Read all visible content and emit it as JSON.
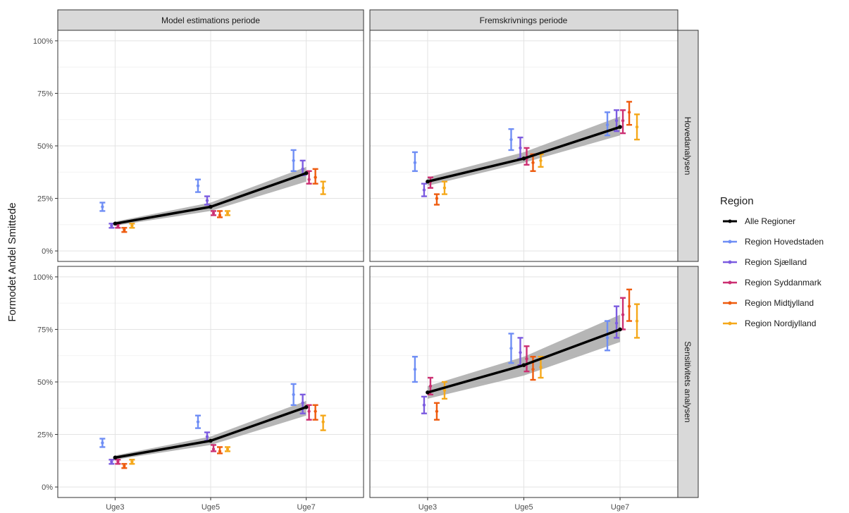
{
  "chart_data": {
    "type": "line",
    "ylabel": "Formodet Andel Smittede",
    "xlabel": "",
    "x_categories": [
      "Uge3",
      "Uge5",
      "Uge7"
    ],
    "y_ticks": [
      "0%",
      "25%",
      "50%",
      "75%",
      "100%"
    ],
    "ylim": [
      0,
      1
    ],
    "grid": true,
    "column_facets": [
      "Model estimations periode",
      "Fremskrivnings periode"
    ],
    "row_facets": [
      "Hovedanalysen",
      "Sensitivitets analysen"
    ],
    "legend": {
      "title": "Region",
      "position": "right",
      "entries": [
        {
          "name": "Alle Regioner",
          "color": "#000000"
        },
        {
          "name": "Region Hovedstaden",
          "color": "#6f8ef5"
        },
        {
          "name": "Region Sjælland",
          "color": "#7c5ce0"
        },
        {
          "name": "Region Syddanmark",
          "color": "#cc2f72"
        },
        {
          "name": "Region Midtjylland",
          "color": "#ee5b0e"
        },
        {
          "name": "Region Nordjylland",
          "color": "#f5a81a"
        }
      ]
    },
    "panels": [
      {
        "col": 0,
        "row": 0,
        "overall": {
          "values": [
            0.13,
            0.21,
            0.37
          ],
          "lower": [
            0.12,
            0.19,
            0.33
          ],
          "upper": [
            0.14,
            0.23,
            0.4
          ]
        },
        "regions": [
          {
            "name": "Region Hovedstaden",
            "est": [
              0.21,
              0.31,
              0.43
            ],
            "lo": [
              0.19,
              0.28,
              0.38
            ],
            "hi": [
              0.23,
              0.34,
              0.48
            ]
          },
          {
            "name": "Region Sjælland",
            "est": [
              0.12,
              0.24,
              0.39
            ],
            "lo": [
              0.11,
              0.22,
              0.36
            ],
            "hi": [
              0.13,
              0.26,
              0.43
            ]
          },
          {
            "name": "Region Syddanmark",
            "est": [
              0.12,
              0.18,
              0.34
            ],
            "lo": [
              0.11,
              0.17,
              0.32
            ],
            "hi": [
              0.13,
              0.19,
              0.38
            ]
          },
          {
            "name": "Region Midtjylland",
            "est": [
              0.1,
              0.17,
              0.35
            ],
            "lo": [
              0.09,
              0.16,
              0.32
            ],
            "hi": [
              0.11,
              0.19,
              0.39
            ]
          },
          {
            "name": "Region Nordjylland",
            "est": [
              0.12,
              0.18,
              0.3
            ],
            "lo": [
              0.11,
              0.17,
              0.27
            ],
            "hi": [
              0.13,
              0.19,
              0.33
            ]
          }
        ]
      },
      {
        "col": 1,
        "row": 0,
        "overall": {
          "values": [
            0.33,
            0.44,
            0.59
          ],
          "lower": [
            0.31,
            0.42,
            0.55
          ],
          "upper": [
            0.35,
            0.47,
            0.64
          ]
        },
        "regions": [
          {
            "name": "Region Hovedstaden",
            "est": [
              0.42,
              0.53,
              0.6
            ],
            "lo": [
              0.38,
              0.48,
              0.55
            ],
            "hi": [
              0.47,
              0.58,
              0.66
            ]
          },
          {
            "name": "Region Sjælland",
            "est": [
              0.29,
              0.49,
              0.62
            ],
            "lo": [
              0.26,
              0.44,
              0.57
            ],
            "hi": [
              0.32,
              0.54,
              0.67
            ]
          },
          {
            "name": "Region Syddanmark",
            "est": [
              0.33,
              0.44,
              0.62
            ],
            "lo": [
              0.3,
              0.41,
              0.56
            ],
            "hi": [
              0.35,
              0.49,
              0.67
            ]
          },
          {
            "name": "Region Midtjylland",
            "est": [
              0.25,
              0.42,
              0.66
            ],
            "lo": [
              0.22,
              0.38,
              0.6
            ],
            "hi": [
              0.27,
              0.46,
              0.71
            ]
          },
          {
            "name": "Region Nordjylland",
            "est": [
              0.3,
              0.43,
              0.59
            ],
            "lo": [
              0.27,
              0.4,
              0.53
            ],
            "hi": [
              0.33,
              0.46,
              0.65
            ]
          }
        ]
      },
      {
        "col": 0,
        "row": 1,
        "overall": {
          "values": [
            0.14,
            0.22,
            0.38
          ],
          "lower": [
            0.13,
            0.2,
            0.34
          ],
          "upper": [
            0.15,
            0.24,
            0.41
          ]
        },
        "regions": [
          {
            "name": "Region Hovedstaden",
            "est": [
              0.21,
              0.31,
              0.44
            ],
            "lo": [
              0.19,
              0.28,
              0.39
            ],
            "hi": [
              0.23,
              0.34,
              0.49
            ]
          },
          {
            "name": "Region Sjælland",
            "est": [
              0.12,
              0.24,
              0.4
            ],
            "lo": [
              0.11,
              0.22,
              0.35
            ],
            "hi": [
              0.13,
              0.26,
              0.44
            ]
          },
          {
            "name": "Region Syddanmark",
            "est": [
              0.12,
              0.18,
              0.36
            ],
            "lo": [
              0.11,
              0.17,
              0.32
            ],
            "hi": [
              0.13,
              0.2,
              0.39
            ]
          },
          {
            "name": "Region Midtjylland",
            "est": [
              0.1,
              0.17,
              0.36
            ],
            "lo": [
              0.09,
              0.16,
              0.32
            ],
            "hi": [
              0.11,
              0.19,
              0.39
            ]
          },
          {
            "name": "Region Nordjylland",
            "est": [
              0.12,
              0.18,
              0.31
            ],
            "lo": [
              0.11,
              0.17,
              0.27
            ],
            "hi": [
              0.13,
              0.19,
              0.34
            ]
          }
        ]
      },
      {
        "col": 1,
        "row": 1,
        "overall": {
          "values": [
            0.45,
            0.58,
            0.75
          ],
          "lower": [
            0.42,
            0.53,
            0.69
          ],
          "upper": [
            0.48,
            0.62,
            0.82
          ]
        },
        "regions": [
          {
            "name": "Region Hovedstaden",
            "est": [
              0.56,
              0.66,
              0.71
            ],
            "lo": [
              0.5,
              0.59,
              0.65
            ],
            "hi": [
              0.62,
              0.73,
              0.79
            ]
          },
          {
            "name": "Region Sjælland",
            "est": [
              0.39,
              0.64,
              0.78
            ],
            "lo": [
              0.35,
              0.58,
              0.71
            ],
            "hi": [
              0.43,
              0.71,
              0.86
            ]
          },
          {
            "name": "Region Syddanmark",
            "est": [
              0.48,
              0.61,
              0.82
            ],
            "lo": [
              0.44,
              0.55,
              0.75
            ],
            "hi": [
              0.52,
              0.67,
              0.9
            ]
          },
          {
            "name": "Region Midtjylland",
            "est": [
              0.36,
              0.56,
              0.86
            ],
            "lo": [
              0.32,
              0.51,
              0.79
            ],
            "hi": [
              0.4,
              0.62,
              0.94
            ]
          },
          {
            "name": "Region Nordjylland",
            "est": [
              0.46,
              0.57,
              0.79
            ],
            "lo": [
              0.42,
              0.52,
              0.71
            ],
            "hi": [
              0.5,
              0.62,
              0.87
            ]
          }
        ]
      }
    ]
  }
}
